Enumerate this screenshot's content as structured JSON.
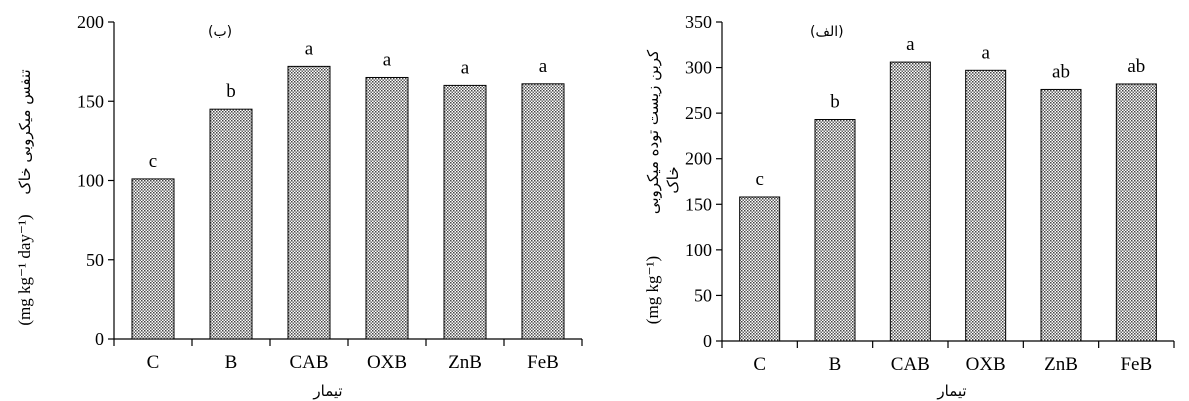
{
  "chart_data": [
    {
      "type": "bar",
      "panel_label": "(ب)",
      "categories": [
        "C",
        "B",
        "CAB",
        "OXB",
        "ZnB",
        "FeB"
      ],
      "values": [
        101,
        145,
        172,
        165,
        160,
        161
      ],
      "letters": [
        "c",
        "b",
        "a",
        "a",
        "a",
        "a"
      ],
      "xlabel": "تیمار",
      "ylabel_text": "تنفس میکروبی خاک",
      "ylabel_unit": "(mg kg⁻¹ day⁻¹)",
      "ylim": [
        0,
        200
      ],
      "yticks": [
        0,
        50,
        100,
        150,
        200
      ],
      "grid": false,
      "bar_fill": "dotted-gray"
    },
    {
      "type": "bar",
      "panel_label": "(الف)",
      "categories": [
        "C",
        "B",
        "CAB",
        "OXB",
        "ZnB",
        "FeB"
      ],
      "values": [
        158,
        243,
        306,
        297,
        276,
        282
      ],
      "letters": [
        "c",
        "b",
        "a",
        "a",
        "ab",
        "ab"
      ],
      "xlabel": "تیمار",
      "ylabel_text": "کربن زیست توده میکروبی",
      "ylabel_text2": "خاک",
      "ylabel_unit": "(mg kg⁻¹)",
      "ylim": [
        0,
        350
      ],
      "yticks": [
        0,
        50,
        100,
        150,
        200,
        250,
        300,
        350
      ],
      "grid": false,
      "bar_fill": "dotted-gray"
    }
  ],
  "colors": {
    "bar_pattern": "#555555",
    "axis": "#000000",
    "background": "#ffffff"
  }
}
